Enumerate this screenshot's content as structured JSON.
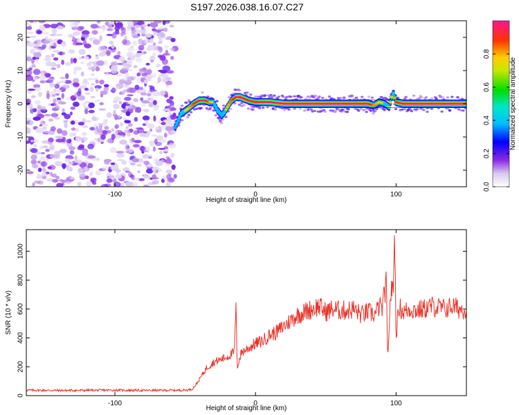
{
  "figure_title": "S197.2026.038.16.07.C27",
  "chart_data": [
    {
      "type": "heatmap",
      "title": "S197.2026.038.16.07.C27",
      "xlabel": "Height of straight line (km)",
      "ylabel": "Frequency (Hz)",
      "xlim": [
        -163,
        150
      ],
      "ylim": [
        -25,
        25
      ],
      "xticks": [
        -100,
        0,
        100
      ],
      "yticks": [
        -20,
        -10,
        0,
        10,
        20
      ],
      "colorbar": {
        "label": "Normalized spectral amplitude",
        "range": [
          0.0,
          1.0
        ],
        "ticks": [
          0.0,
          0.2,
          0.4,
          0.6,
          0.8
        ],
        "tick_labels": [
          "0.0",
          "0.2",
          "0.4",
          "0.6",
          "0.8"
        ],
        "colormap": "rainbow (white-purple-blue-cyan-green-yellow-red-magenta)"
      },
      "noise_region_x": [
        -163,
        -57
      ],
      "signal_track": {
        "x": [
          -57,
          -53,
          -48,
          -44,
          -40,
          -36,
          -33,
          -30,
          -27,
          -24,
          -22,
          -20,
          -17,
          -14,
          -11,
          -8,
          -5,
          0,
          5,
          10,
          20,
          40,
          60,
          80,
          84,
          88,
          92,
          95,
          97,
          98,
          100,
          105,
          120,
          150
        ],
        "freq": [
          -7,
          -3,
          -1.5,
          0,
          1,
          1,
          0.5,
          0.5,
          -2,
          -3.5,
          -2.5,
          -1,
          1,
          2,
          2,
          1.5,
          1,
          0.5,
          0.5,
          0.5,
          0,
          0,
          0,
          0,
          -0.5,
          0.5,
          0,
          -1,
          2,
          3,
          0.5,
          0,
          0,
          0
        ],
        "amp": [
          0.4,
          0.5,
          0.6,
          0.8,
          0.95,
          0.9,
          0.7,
          0.5,
          0.45,
          0.4,
          0.5,
          0.6,
          0.75,
          0.9,
          1.0,
          0.95,
          0.85,
          0.8,
          0.9,
          0.95,
          0.97,
          1.0,
          1.0,
          0.95,
          0.7,
          0.6,
          0.5,
          0.55,
          0.6,
          0.5,
          0.8,
          0.95,
          1.0,
          1.0
        ]
      }
    },
    {
      "type": "line",
      "title": "",
      "xlabel": "Height of straight line (km)",
      "ylabel": "SNR (10 * v/v)",
      "xlim": [
        -163,
        150
      ],
      "ylim": [
        0,
        1150
      ],
      "xticks": [
        -100,
        0,
        100
      ],
      "yticks": [
        0,
        200,
        400,
        600,
        800,
        1000
      ],
      "series": [
        {
          "name": "SNR",
          "color": "#e8322a",
          "x": [
            -163,
            -140,
            -120,
            -100,
            -80,
            -60,
            -50,
            -45,
            -42,
            -40,
            -35,
            -30,
            -25,
            -20,
            -15,
            -14,
            -13,
            -10,
            -5,
            0,
            5,
            10,
            15,
            20,
            25,
            30,
            35,
            40,
            45,
            50,
            55,
            60,
            65,
            70,
            75,
            80,
            85,
            88,
            90,
            93,
            94,
            96,
            98,
            99,
            100,
            102,
            105,
            110,
            115,
            120,
            125,
            130,
            135,
            140,
            145,
            150
          ],
          "y": [
            38,
            36,
            37,
            38,
            36,
            37,
            38,
            45,
            80,
            110,
            190,
            230,
            250,
            270,
            300,
            630,
            200,
            300,
            330,
            360,
            380,
            420,
            440,
            480,
            520,
            560,
            580,
            600,
            620,
            580,
            600,
            590,
            590,
            600,
            560,
            580,
            560,
            620,
            600,
            780,
            240,
            700,
            750,
            1150,
            400,
            620,
            580,
            600,
            590,
            600,
            620,
            610,
            600,
            620,
            600,
            600
          ]
        }
      ]
    }
  ]
}
